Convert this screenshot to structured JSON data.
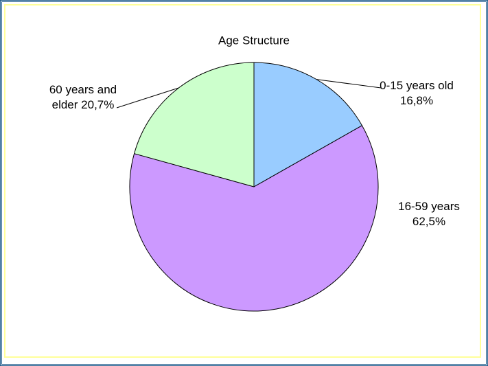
{
  "chart_data": {
    "type": "pie",
    "title": "Age Structure",
    "categories": [
      "0-15 years old",
      "16-59 years",
      "60 years and elder"
    ],
    "values": [
      16.8,
      62.5,
      20.7
    ],
    "value_labels": [
      "16,8%",
      "62,5%",
      "20,7%"
    ],
    "colors": [
      "#99ccff",
      "#cc99ff",
      "#ccffcc"
    ]
  }
}
